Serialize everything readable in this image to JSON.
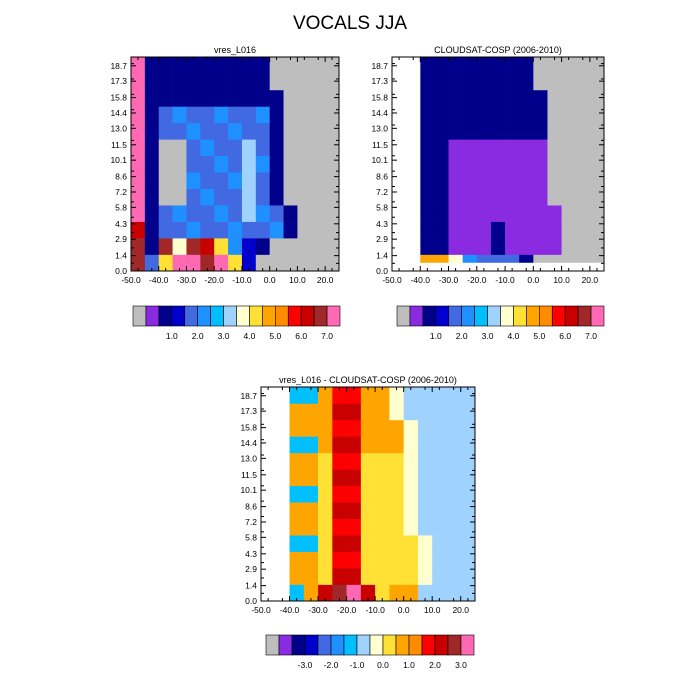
{
  "title": "VOCALS JJA",
  "chart_data": [
    {
      "type": "heatmap",
      "title": "vres_L016",
      "x_ticks": [
        "-50.0",
        "-40.0",
        "-30.0",
        "-20.0",
        "-10.0",
        "0.0",
        "10.0",
        "20.0"
      ],
      "y_ticks": [
        "0.0",
        "1.4",
        "2.9",
        "4.3",
        "5.8",
        "7.2",
        "8.6",
        "10.1",
        "11.5",
        "13.0",
        "14.4",
        "15.8",
        "17.3",
        "18.7"
      ],
      "xlim": [
        -50,
        25
      ],
      "ylim": [
        0,
        19.5
      ],
      "missing_color": "#bebebe",
      "colorbar": {
        "colors": [
          "#bebebe",
          "#8a2be2",
          "#00008b",
          "#0000cd",
          "#4169e1",
          "#1e90ff",
          "#00bfff",
          "#a0d2ff",
          "#ffffd0",
          "#ffe135",
          "#ffa500",
          "#ff8c00",
          "#ff0000",
          "#c80000",
          "#a02828",
          "#ff69b4"
        ],
        "labels": [
          "1.0",
          "2.0",
          "3.0",
          "4.0",
          "5.0",
          "6.0",
          "7.0"
        ]
      }
    },
    {
      "type": "heatmap",
      "title": "CLOUDSAT-COSP (2006-2010)",
      "x_ticks": [
        "-50.0",
        "-40.0",
        "-30.0",
        "-20.0",
        "-10.0",
        "0.0",
        "10.0",
        "20.0"
      ],
      "y_ticks": [
        "0.0",
        "1.4",
        "2.9",
        "4.3",
        "5.8",
        "7.2",
        "8.6",
        "10.1",
        "11.5",
        "13.0",
        "14.4",
        "15.8",
        "17.3",
        "18.7"
      ],
      "xlim": [
        -50,
        25
      ],
      "ylim": [
        0,
        19.5
      ],
      "missing_color": "#bebebe",
      "colorbar": {
        "colors": [
          "#bebebe",
          "#8a2be2",
          "#00008b",
          "#0000cd",
          "#4169e1",
          "#1e90ff",
          "#00bfff",
          "#a0d2ff",
          "#ffffd0",
          "#ffe135",
          "#ffa500",
          "#ff8c00",
          "#ff0000",
          "#c80000",
          "#a02828",
          "#ff69b4"
        ],
        "labels": [
          "1.0",
          "2.0",
          "3.0",
          "4.0",
          "5.0",
          "6.0",
          "7.0"
        ]
      }
    },
    {
      "type": "heatmap",
      "title": "vres_L016 - CLOUDSAT-COSP (2006-2010)",
      "x_ticks": [
        "-50.0",
        "-40.0",
        "-30.0",
        "-20.0",
        "-10.0",
        "0.0",
        "10.0",
        "20.0"
      ],
      "y_ticks": [
        "0.0",
        "1.4",
        "2.9",
        "4.3",
        "5.8",
        "7.2",
        "8.6",
        "10.1",
        "11.5",
        "13.0",
        "14.4",
        "15.8",
        "17.3",
        "18.7"
      ],
      "xlim": [
        -50,
        25
      ],
      "ylim": [
        0,
        19.5
      ],
      "missing_color": "#bebebe",
      "colorbar": {
        "colors": [
          "#bebebe",
          "#8a2be2",
          "#00008b",
          "#0000cd",
          "#4169e1",
          "#1e90ff",
          "#00bfff",
          "#a0d2ff",
          "#ffffd0",
          "#ffe135",
          "#ffa500",
          "#ff8c00",
          "#ff0000",
          "#c80000",
          "#a02828",
          "#ff69b4"
        ],
        "labels": [
          "-3.0",
          "-2.0",
          "-1.0",
          "0.0",
          "1.0",
          "2.0",
          "3.0"
        ]
      }
    }
  ]
}
